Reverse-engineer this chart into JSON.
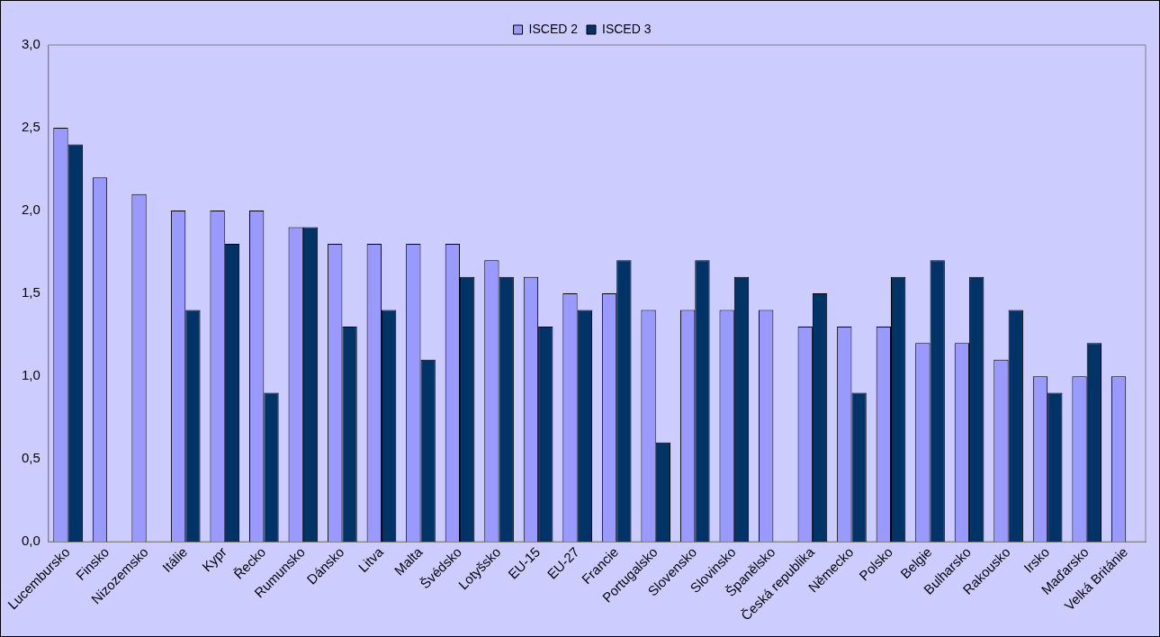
{
  "chart_data": {
    "type": "bar",
    "categories": [
      "Lucembursko",
      "Finsko",
      "Nizozemsko",
      "Itálie",
      "Kypr",
      "Řecko",
      "Rumunsko",
      "Dánsko",
      "Litva",
      "Malta",
      "Švédsko",
      "Lotyšsko",
      "EU-15",
      "EU-27",
      "Francie",
      "Portugalsko",
      "Slovensko",
      "Slovinsko",
      "Španělsko",
      "Česká republika",
      "Německo",
      "Polsko",
      "Belgie",
      "Bulharsko",
      "Rakousko",
      "Irsko",
      "Maďarsko",
      "Velká Británie"
    ],
    "series": [
      {
        "name": "ISCED 2",
        "color": "#9999ff",
        "values": [
          2.5,
          2.2,
          2.1,
          2.0,
          2.0,
          2.0,
          1.9,
          1.8,
          1.8,
          1.8,
          1.8,
          1.7,
          1.6,
          1.5,
          1.5,
          1.4,
          1.4,
          1.4,
          1.4,
          1.3,
          1.3,
          1.3,
          1.2,
          1.2,
          1.1,
          1.0,
          1.0,
          1.0
        ]
      },
      {
        "name": "ISCED 3",
        "color": "#003366",
        "values": [
          2.4,
          null,
          null,
          1.4,
          1.8,
          0.9,
          1.9,
          1.3,
          1.4,
          1.1,
          1.6,
          1.6,
          1.3,
          1.4,
          1.7,
          0.6,
          1.7,
          1.6,
          null,
          1.5,
          0.9,
          1.6,
          1.7,
          1.6,
          1.4,
          0.9,
          1.2,
          null
        ]
      }
    ],
    "ylim": [
      0,
      3
    ],
    "yticks": [
      {
        "value": 0,
        "label": "0,0"
      },
      {
        "value": 0.5,
        "label": "0,5"
      },
      {
        "value": 1,
        "label": "1,0"
      },
      {
        "value": 1.5,
        "label": "1,5"
      },
      {
        "value": 2,
        "label": "2,0"
      },
      {
        "value": 2.5,
        "label": "2,5"
      },
      {
        "value": 3,
        "label": "3,0"
      }
    ],
    "grid": false,
    "legend": "top"
  }
}
